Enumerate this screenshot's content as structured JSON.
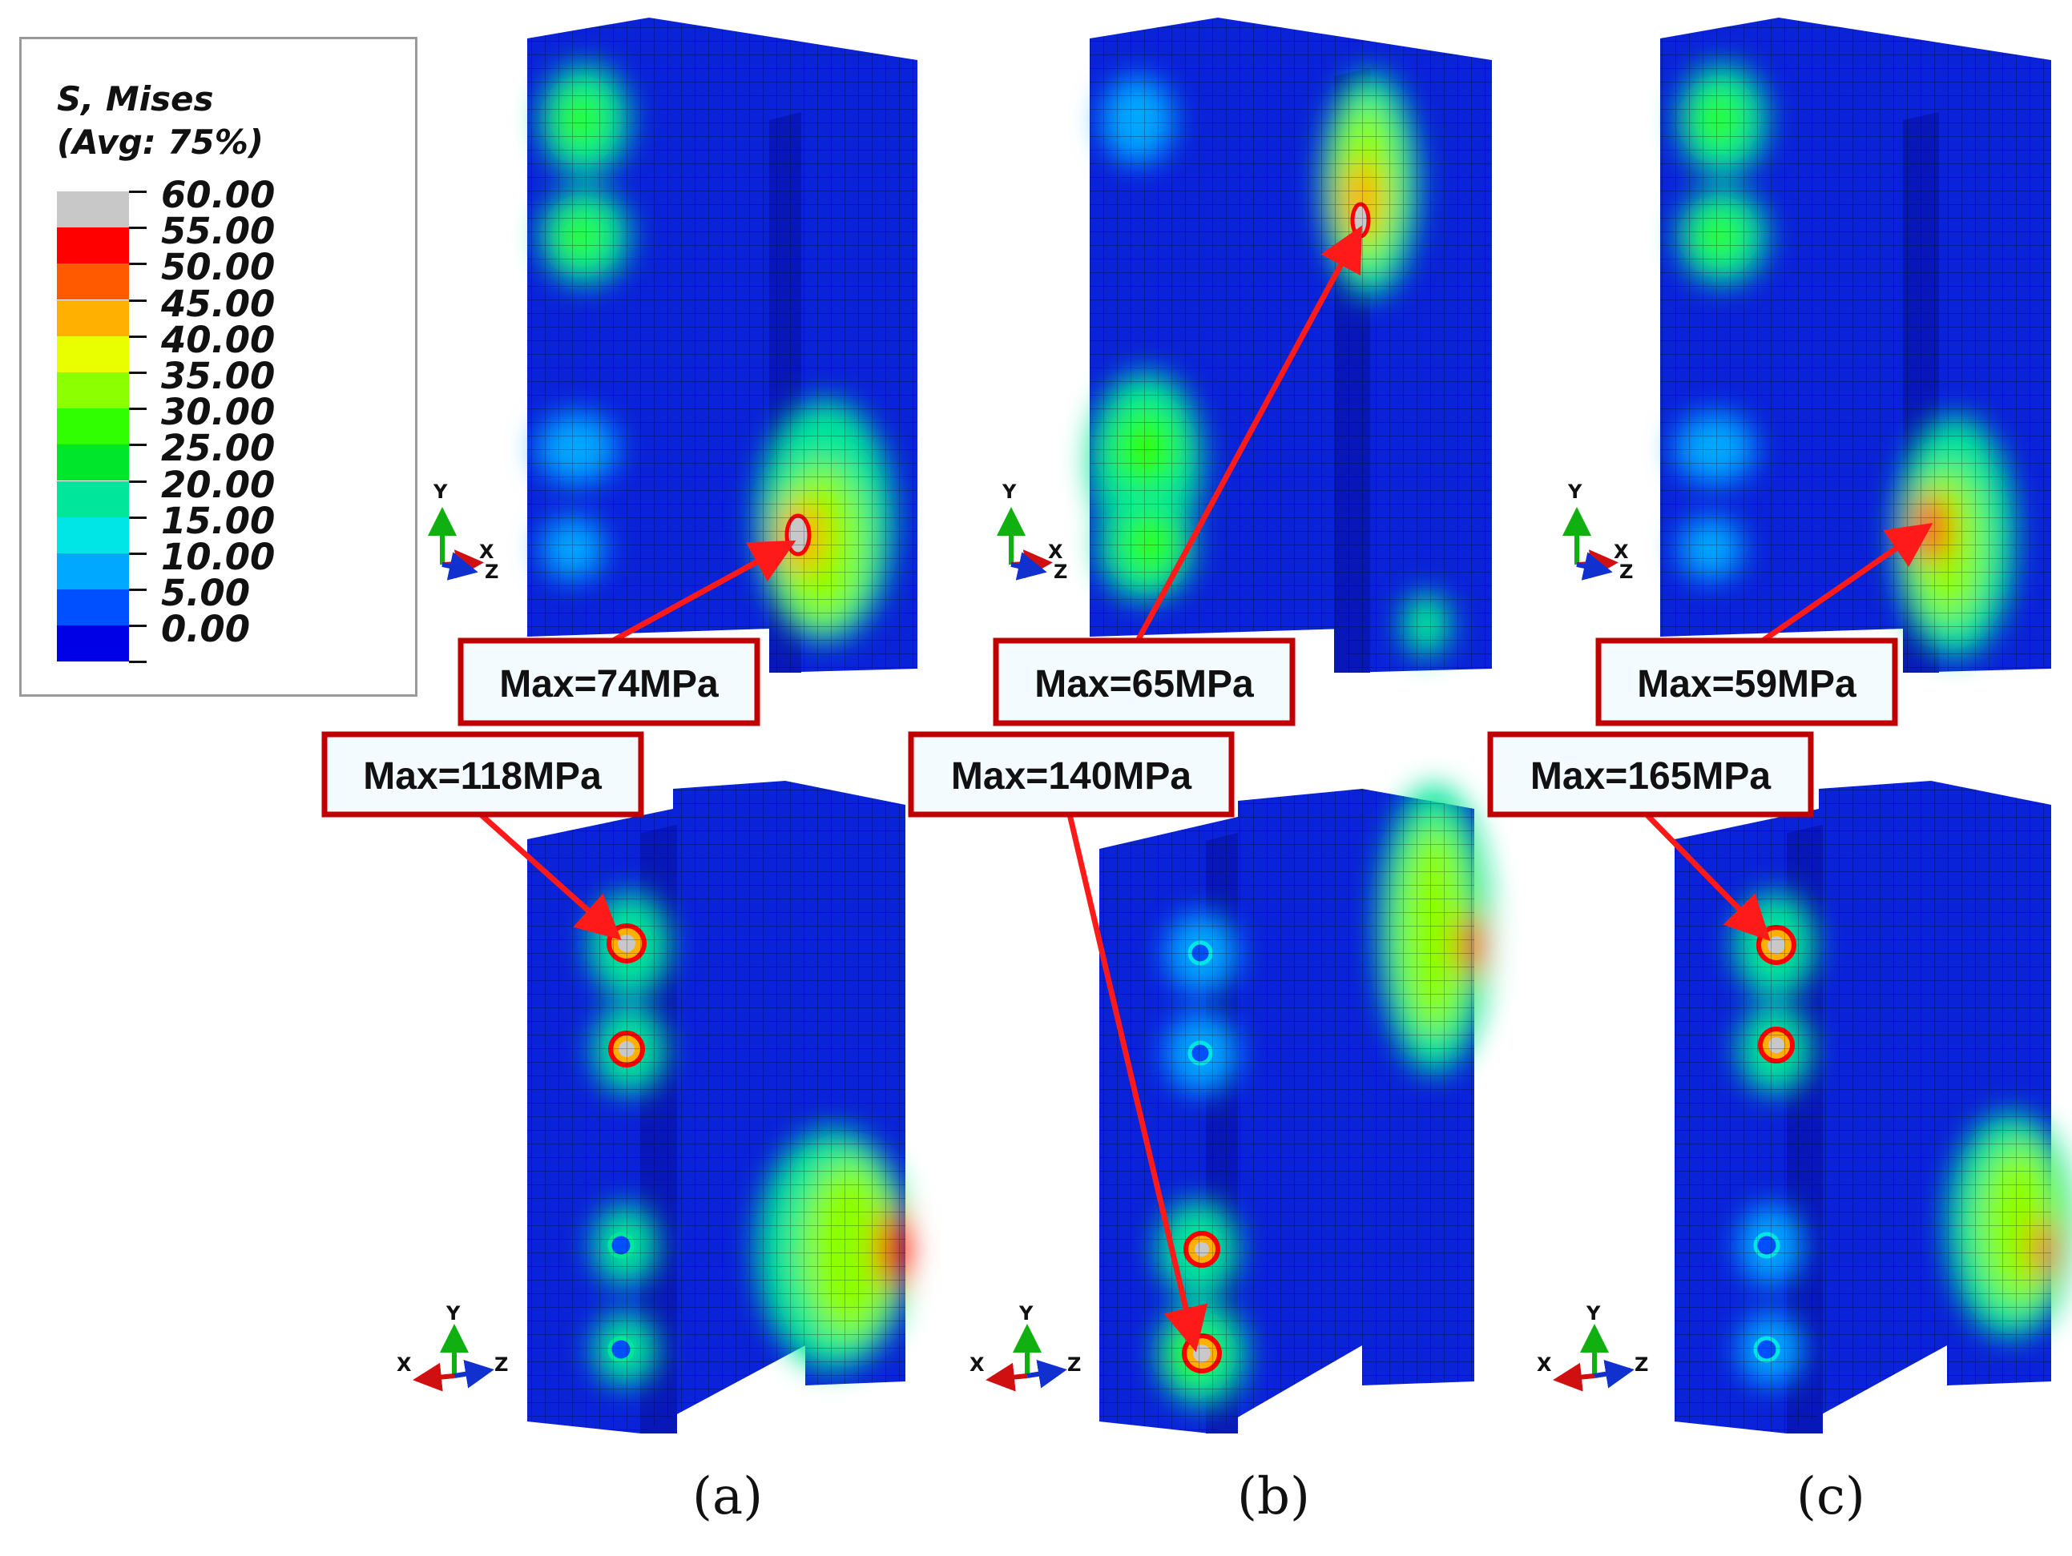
{
  "legend": {
    "title_line1": "S, Mises",
    "title_line2": "(Avg: 75%)",
    "entries": [
      {
        "label": "60.00",
        "color": "#c8c8c8"
      },
      {
        "label": "55.00",
        "color": "#ff0000"
      },
      {
        "label": "50.00",
        "color": "#ff5a00"
      },
      {
        "label": "45.00",
        "color": "#ffb000"
      },
      {
        "label": "40.00",
        "color": "#e9ff00"
      },
      {
        "label": "35.00",
        "color": "#8cff00"
      },
      {
        "label": "30.00",
        "color": "#2fff00"
      },
      {
        "label": "25.00",
        "color": "#00e62a"
      },
      {
        "label": "20.00",
        "color": "#00e69a"
      },
      {
        "label": "15.00",
        "color": "#00e6e6"
      },
      {
        "label": "10.00",
        "color": "#00a8ff"
      },
      {
        "label": "5.00",
        "color": "#0050ff"
      },
      {
        "label": "0.00",
        "color": "#0000e6"
      }
    ]
  },
  "panels": [
    {
      "caption": "(a)",
      "top_max": "Max=74MPa",
      "bottom_max": "Max=118MPa"
    },
    {
      "caption": "(b)",
      "top_max": "Max=65MPa",
      "bottom_max": "Max=140MPa"
    },
    {
      "caption": "(c)",
      "top_max": "Max=59MPa",
      "bottom_max": "Max=165MPa"
    }
  ],
  "triad_labels": {
    "x": "X",
    "y": "Y",
    "z": "Z"
  },
  "colors": {
    "mesh_blue": "#0a22d8",
    "callout_border": "#c00000",
    "callout_fill": "#f4fbff",
    "arrow": "#ff1a1a"
  }
}
